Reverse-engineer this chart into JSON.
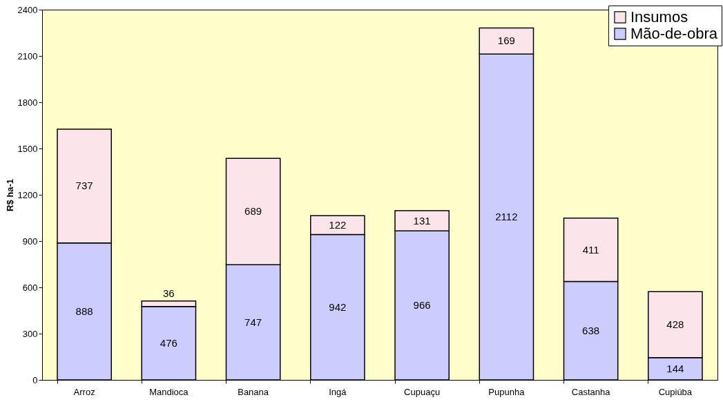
{
  "chart_data": {
    "type": "bar",
    "stacked": true,
    "ylabel": "R$ ha-1",
    "categories": [
      "Arroz",
      "Mandioca",
      "Banana",
      "Ingá",
      "Cupuaçu",
      "Pupunha",
      "Castanha",
      "Cupiúba"
    ],
    "series": [
      {
        "name": "Mão-de-obra",
        "color": "#ccccff",
        "values": [
          888,
          476,
          747,
          942,
          966,
          2112,
          638,
          144
        ]
      },
      {
        "name": "Insumos",
        "color": "#fbe4ea",
        "values": [
          737,
          36,
          689,
          122,
          131,
          169,
          411,
          428
        ]
      }
    ],
    "ylim": [
      0,
      2400
    ],
    "yticks": [
      0,
      300,
      600,
      900,
      1200,
      1500,
      1800,
      2100,
      2400
    ],
    "grid": false,
    "legend": "top right",
    "data_labels": true
  }
}
